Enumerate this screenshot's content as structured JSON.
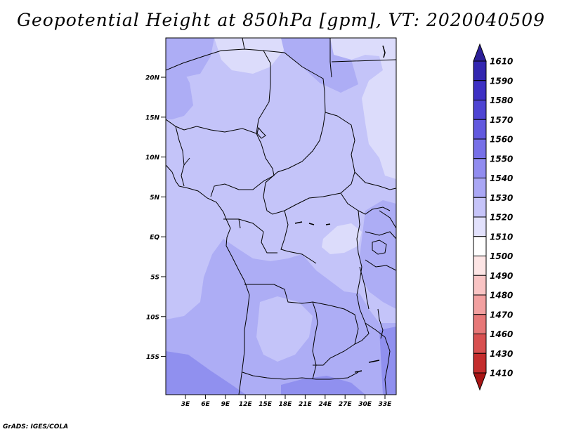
{
  "title": "Geopotential Height at 850hPa [gpm], VT: 2020040509",
  "credit": "GrADS: IGES/COLA",
  "map": {
    "lat_ticks": [
      "20N",
      "15N",
      "10N",
      "5N",
      "EQ",
      "5S",
      "10S",
      "15S"
    ],
    "lon_ticks": [
      "3E",
      "6E",
      "9E",
      "12E",
      "15E",
      "18E",
      "21E",
      "24E",
      "27E",
      "30E",
      "33E"
    ],
    "fill_colors": {
      "1520": "#dcdcfb",
      "1530": "#c4c4f9",
      "1540": "#adadf5",
      "1550": "#9090ef"
    }
  },
  "colorbar": {
    "levels": [
      "1610",
      "1590",
      "1580",
      "1570",
      "1560",
      "1550",
      "1540",
      "1530",
      "1520",
      "1510",
      "1500",
      "1490",
      "1480",
      "1470",
      "1460",
      "1430",
      "1410"
    ],
    "colors": [
      "#2c1f98",
      "#3226b0",
      "#3d30c4",
      "#4e44d3",
      "#6259df",
      "#7770e8",
      "#918cf0",
      "#aaa7f5",
      "#c6c4f9",
      "#e2e1fc",
      "#ffffff",
      "#fde5e5",
      "#f9c4c4",
      "#f2a0a0",
      "#e77878",
      "#d85050",
      "#c42d2d",
      "#a81515"
    ]
  }
}
